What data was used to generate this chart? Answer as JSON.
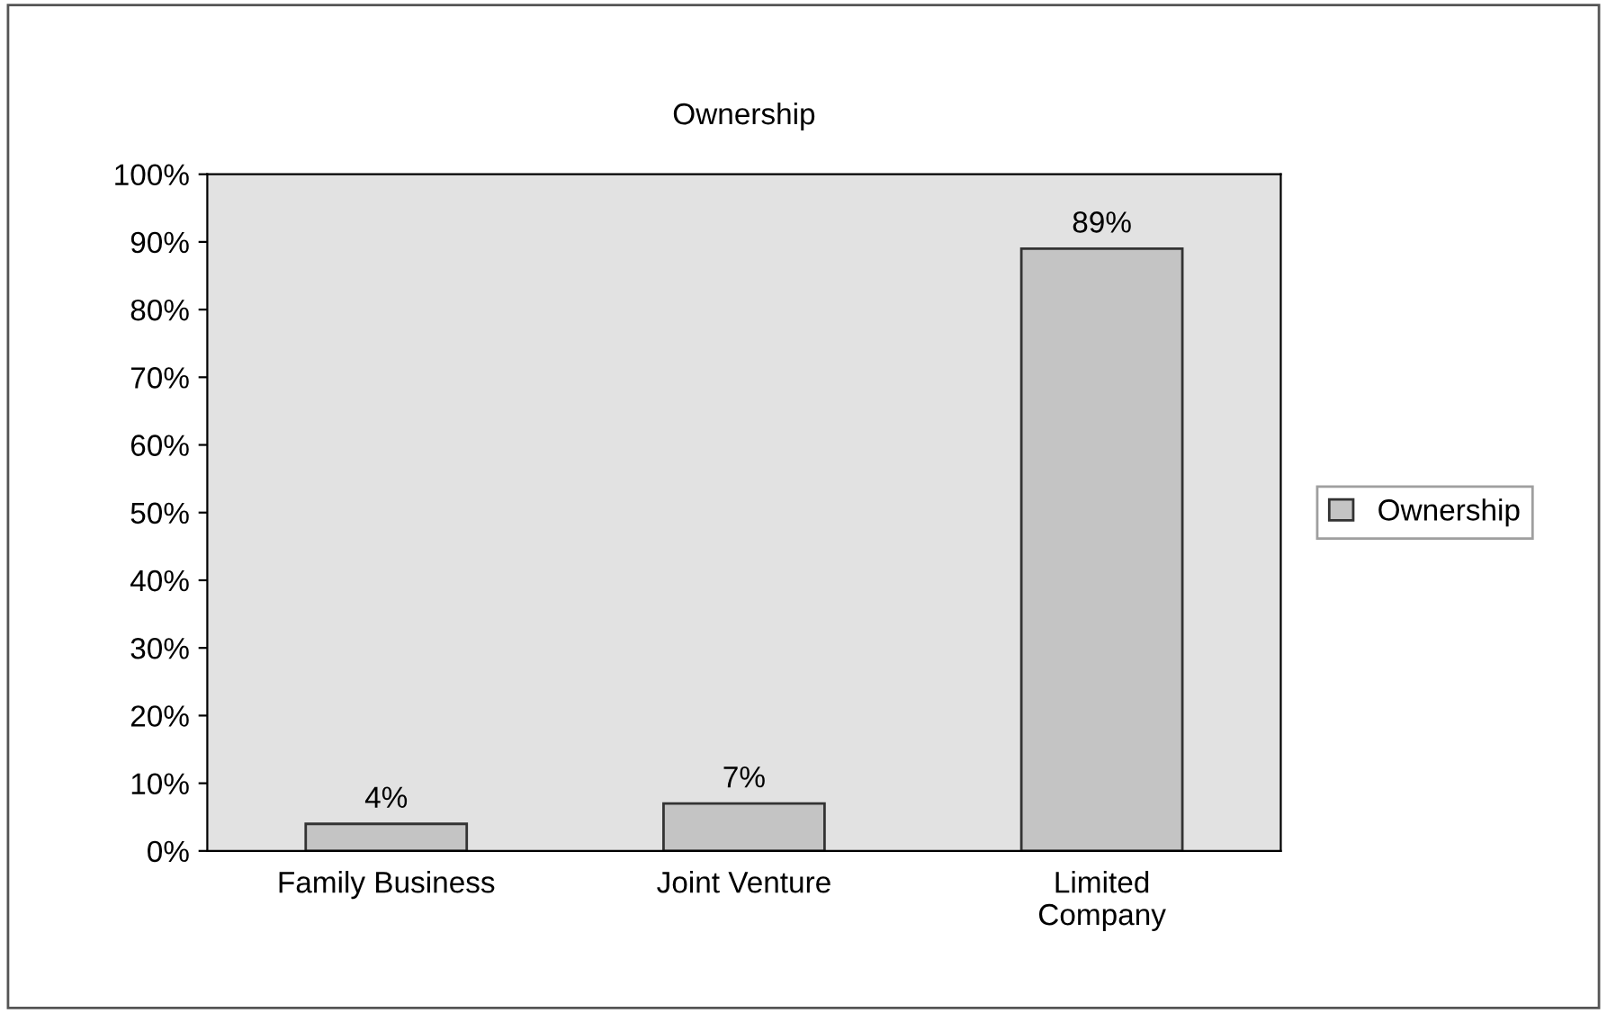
{
  "chart_data": {
    "type": "bar",
    "title": "Ownership",
    "categories": [
      "Family Business",
      "Joint Venture",
      "Limited\nCompany"
    ],
    "series": [
      {
        "name": "Ownership",
        "color": "#c4c4c4",
        "values": [
          4,
          7,
          89
        ],
        "value_labels": [
          "4%",
          "7%",
          "89%"
        ]
      }
    ],
    "ylim": [
      0,
      100
    ],
    "yticks": [
      {
        "value": 0,
        "label": "0%"
      },
      {
        "value": 10,
        "label": "10%"
      },
      {
        "value": 20,
        "label": "20%"
      },
      {
        "value": 30,
        "label": "30%"
      },
      {
        "value": 40,
        "label": "40%"
      },
      {
        "value": 50,
        "label": "50%"
      },
      {
        "value": 60,
        "label": "60%"
      },
      {
        "value": 70,
        "label": "70%"
      },
      {
        "value": 80,
        "label": "80%"
      },
      {
        "value": 90,
        "label": "90%"
      },
      {
        "value": 100,
        "label": "100%"
      }
    ],
    "grid": false,
    "legend": "right"
  }
}
